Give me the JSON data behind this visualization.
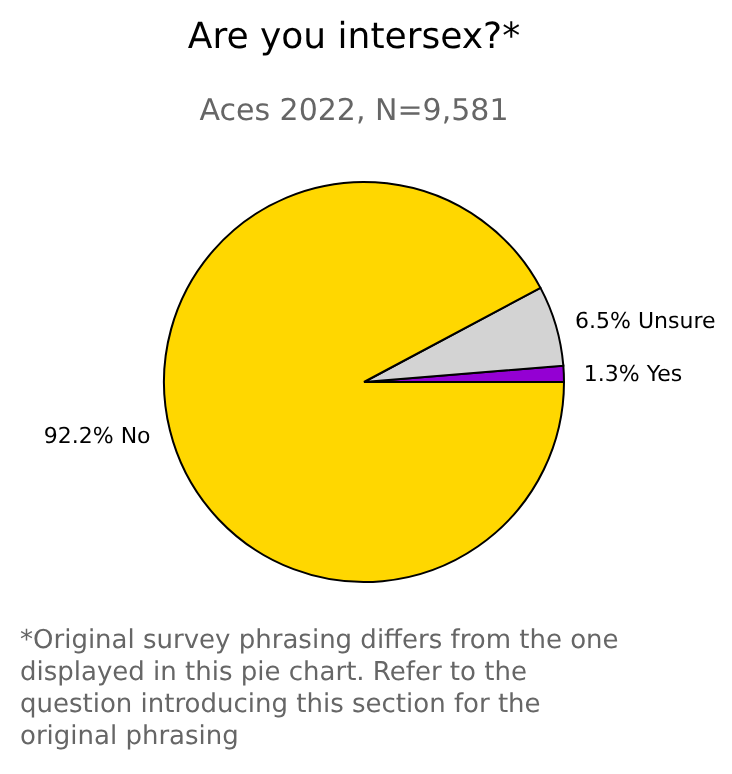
{
  "chart_data": {
    "type": "pie",
    "title": "Are you intersex?*",
    "subtitle": "Aces 2022, N=9,581",
    "categories": [
      "Yes",
      "Unsure",
      "No"
    ],
    "values": [
      1.3,
      6.5,
      92.2
    ],
    "colors": [
      "#9400d3",
      "#d3d3d3",
      "#ffd700"
    ],
    "value_labels": [
      "1.3%",
      "6.5%",
      "92.2%"
    ],
    "annotations": [
      "*Original survey phrasing differs from the one displayed in this pie chart. Refer to the question introducing this section for the original phrasing"
    ],
    "legend": false
  }
}
